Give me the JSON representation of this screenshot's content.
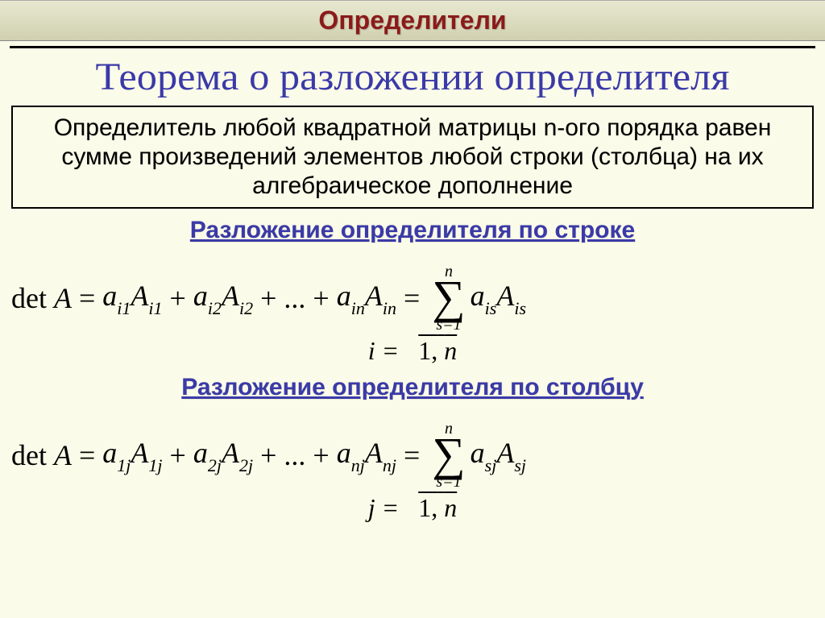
{
  "colors": {
    "background": "#fbfbe9",
    "header_bg_top": "#e8e8d0",
    "header_bg_bot": "#d0d0b0",
    "title_red": "#8b1a1a",
    "accent_blue": "#3a3aa8",
    "text_black": "#000000",
    "rule": "#000000"
  },
  "typography": {
    "header_title_size": 32,
    "theorem_title_size": 48,
    "body_size": 30,
    "subheading_size": 30,
    "formula_size": 36,
    "index_range_size": 32,
    "serif": "Times New Roman",
    "sans": "Arial"
  },
  "header": {
    "title": "Определители"
  },
  "theorem": {
    "title": "Теорема о разложении определителя",
    "text": "Определитель любой квадратной матрицы n-ого порядка равен сумме произведений элементов любой строки (столбца) на их алгебраическое дополнение"
  },
  "row_expansion": {
    "heading": "Разложение определителя по строке",
    "lhs": "det A",
    "terms": [
      "a_{i1}A_{i1}",
      "a_{i2}A_{i2}",
      "...",
      "a_{in}A_{in}"
    ],
    "sum": {
      "upper": "n",
      "lower": "s=1",
      "expr": "a_{is}A_{is}"
    },
    "index_var": "i",
    "index_range": "1, n"
  },
  "col_expansion": {
    "heading": "Разложение определителя по столбцу",
    "lhs": "det A",
    "terms": [
      "a_{1j}A_{1j}",
      "a_{2j}A_{2j}",
      "...",
      "a_{nj}A_{nj}"
    ],
    "sum": {
      "upper": "n",
      "lower": "s=1",
      "expr": "a_{sj}A_{sj}"
    },
    "index_var": "j",
    "index_range": "1, n"
  }
}
